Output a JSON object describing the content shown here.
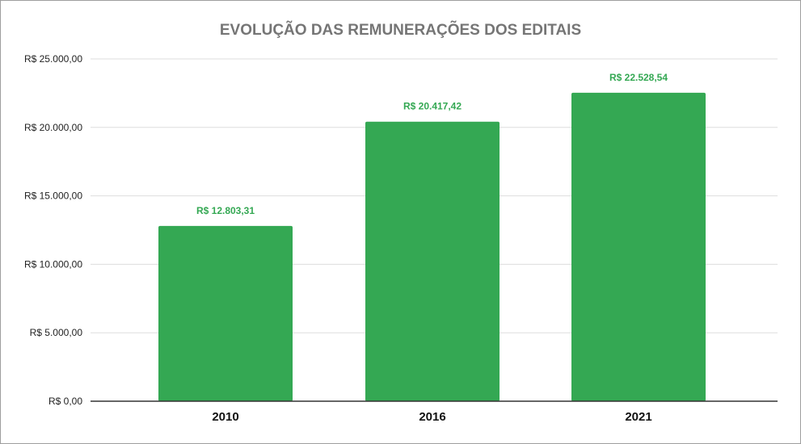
{
  "chart_data": {
    "type": "bar",
    "title": "EVOLUÇÃO DAS REMUNERAÇÕES DOS EDITAIS",
    "categories": [
      "2010",
      "2016",
      "2021"
    ],
    "values": [
      12803.31,
      20417.42,
      22528.54
    ],
    "data_labels": [
      "R$ 12.803,31",
      "R$ 20.417,42",
      "R$ 22.528,54"
    ],
    "ylim": [
      0,
      25000
    ],
    "y_ticks": [
      0,
      5000,
      10000,
      15000,
      20000,
      25000
    ],
    "y_tick_labels": [
      "R$ 0,00",
      "R$ 5.000,00",
      "R$ 10.000,00",
      "R$ 15.000,00",
      "R$ 20.000,00",
      "R$ 25.000,00"
    ],
    "grid": true,
    "legend": "none",
    "colors": {
      "bar": "#34a853",
      "data_label": "#34a853",
      "grid": "#dddddd",
      "axis": "#333333"
    }
  }
}
